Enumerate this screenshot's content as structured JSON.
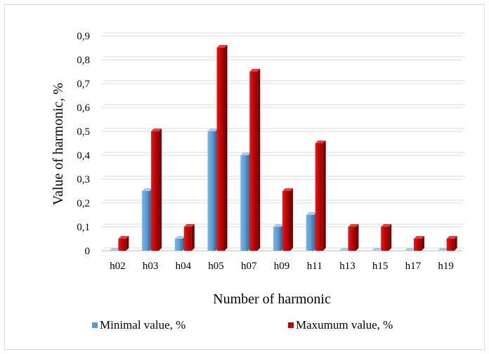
{
  "chart_data": {
    "type": "bar",
    "title": "",
    "xlabel": "Number of harmonic",
    "ylabel": "Value of harmonic, %",
    "categories": [
      "h02",
      "h03",
      "h04",
      "h05",
      "h07",
      "h09",
      "h11",
      "h13",
      "h15",
      "h17",
      "h19"
    ],
    "y_ticks": [
      "0",
      "0,1",
      "0,2",
      "0,3",
      "0,4",
      "0,5",
      "0,6",
      "0,7",
      "0,8",
      "0,9"
    ],
    "ylim": [
      0,
      0.9
    ],
    "grid": true,
    "legend_position": "bottom",
    "series": [
      {
        "name": "Minimal value, %",
        "color": "#5b9bd5",
        "values": [
          0.0,
          0.25,
          0.05,
          0.5,
          0.4,
          0.1,
          0.15,
          0.0,
          0.0,
          0.0,
          0.0
        ]
      },
      {
        "name": "Maxumum value, %",
        "color": "#c00000",
        "values": [
          0.05,
          0.5,
          0.1,
          0.85,
          0.75,
          0.25,
          0.45,
          0.1,
          0.1,
          0.05,
          0.05
        ]
      }
    ]
  }
}
